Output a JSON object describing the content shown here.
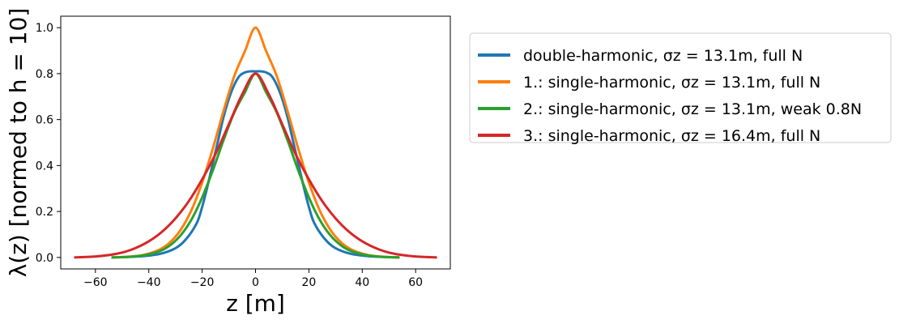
{
  "chart_data": {
    "type": "line",
    "xlabel": "z [m]",
    "ylabel": "λ(z) [normed to h = 10]",
    "xlim": [
      -73,
      73
    ],
    "ylim": [
      -0.05,
      1.05
    ],
    "xticks": [
      -60,
      -40,
      -20,
      0,
      20,
      40,
      60
    ],
    "xtick_labels": [
      "−60",
      "−40",
      "−20",
      "0",
      "20",
      "40",
      "60"
    ],
    "yticks": [
      0.0,
      0.2,
      0.4,
      0.6,
      0.8,
      1.0
    ],
    "ytick_labels": [
      "0.0",
      "0.2",
      "0.4",
      "0.6",
      "0.8",
      "1.0"
    ],
    "grid": false,
    "legend_position": "outside-right-top",
    "series": [
      {
        "name": "double-harmonic, σz = 13.1m, full N",
        "color": "#1f77b4",
        "x": [
          -54,
          -44,
          -36,
          -30,
          -26,
          -22,
          -20,
          -18,
          -16,
          -14,
          -12,
          -10,
          -8,
          -6,
          -4,
          -2,
          0,
          2,
          4,
          6,
          8,
          10,
          12,
          14,
          16,
          18,
          20,
          22,
          26,
          30,
          36,
          44,
          54
        ],
        "y": [
          0.0,
          0.004,
          0.015,
          0.04,
          0.08,
          0.15,
          0.22,
          0.31,
          0.41,
          0.51,
          0.61,
          0.69,
          0.75,
          0.79,
          0.805,
          0.81,
          0.81,
          0.81,
          0.805,
          0.79,
          0.75,
          0.69,
          0.61,
          0.51,
          0.41,
          0.31,
          0.22,
          0.15,
          0.08,
          0.04,
          0.015,
          0.004,
          0.0
        ]
      },
      {
        "name": "1.: single-harmonic, σz = 13.1m, full N",
        "color": "#ff7f0e",
        "x": [
          -54,
          -48,
          -42,
          -36,
          -32,
          -28,
          -24,
          -20,
          -16,
          -12,
          -8,
          -4,
          0,
          4,
          8,
          12,
          16,
          20,
          24,
          28,
          32,
          36,
          42,
          48,
          54
        ],
        "y": [
          0.0,
          0.003,
          0.011,
          0.034,
          0.066,
          0.121,
          0.206,
          0.326,
          0.474,
          0.637,
          0.788,
          0.897,
          1.0,
          0.897,
          0.788,
          0.637,
          0.474,
          0.326,
          0.206,
          0.121,
          0.066,
          0.034,
          0.011,
          0.003,
          0.0
        ]
      },
      {
        "name": "2.: single-harmonic, σz = 13.1m, weak 0.8N",
        "color": "#2ca02c",
        "x": [
          -54,
          -48,
          -42,
          -36,
          -32,
          -28,
          -24,
          -20,
          -16,
          -12,
          -8,
          -4,
          0,
          4,
          8,
          12,
          16,
          20,
          24,
          28,
          32,
          36,
          42,
          48,
          54
        ],
        "y": [
          0.0,
          0.002,
          0.009,
          0.027,
          0.053,
          0.097,
          0.165,
          0.261,
          0.379,
          0.51,
          0.63,
          0.718,
          0.8,
          0.718,
          0.63,
          0.51,
          0.379,
          0.261,
          0.165,
          0.097,
          0.053,
          0.027,
          0.009,
          0.002,
          0.0
        ]
      },
      {
        "name": "3.: single-harmonic, σz = 16.4m, full N",
        "color": "#d62728",
        "x": [
          -68,
          -60,
          -52,
          -46,
          -40,
          -35,
          -30,
          -25,
          -20,
          -15,
          -10,
          -5,
          0,
          5,
          10,
          15,
          20,
          25,
          30,
          35,
          40,
          46,
          52,
          60,
          68
        ],
        "y": [
          0.0,
          0.004,
          0.016,
          0.036,
          0.07,
          0.112,
          0.17,
          0.245,
          0.34,
          0.45,
          0.58,
          0.71,
          0.8,
          0.71,
          0.58,
          0.45,
          0.34,
          0.245,
          0.17,
          0.112,
          0.07,
          0.036,
          0.016,
          0.004,
          0.0
        ]
      }
    ]
  }
}
